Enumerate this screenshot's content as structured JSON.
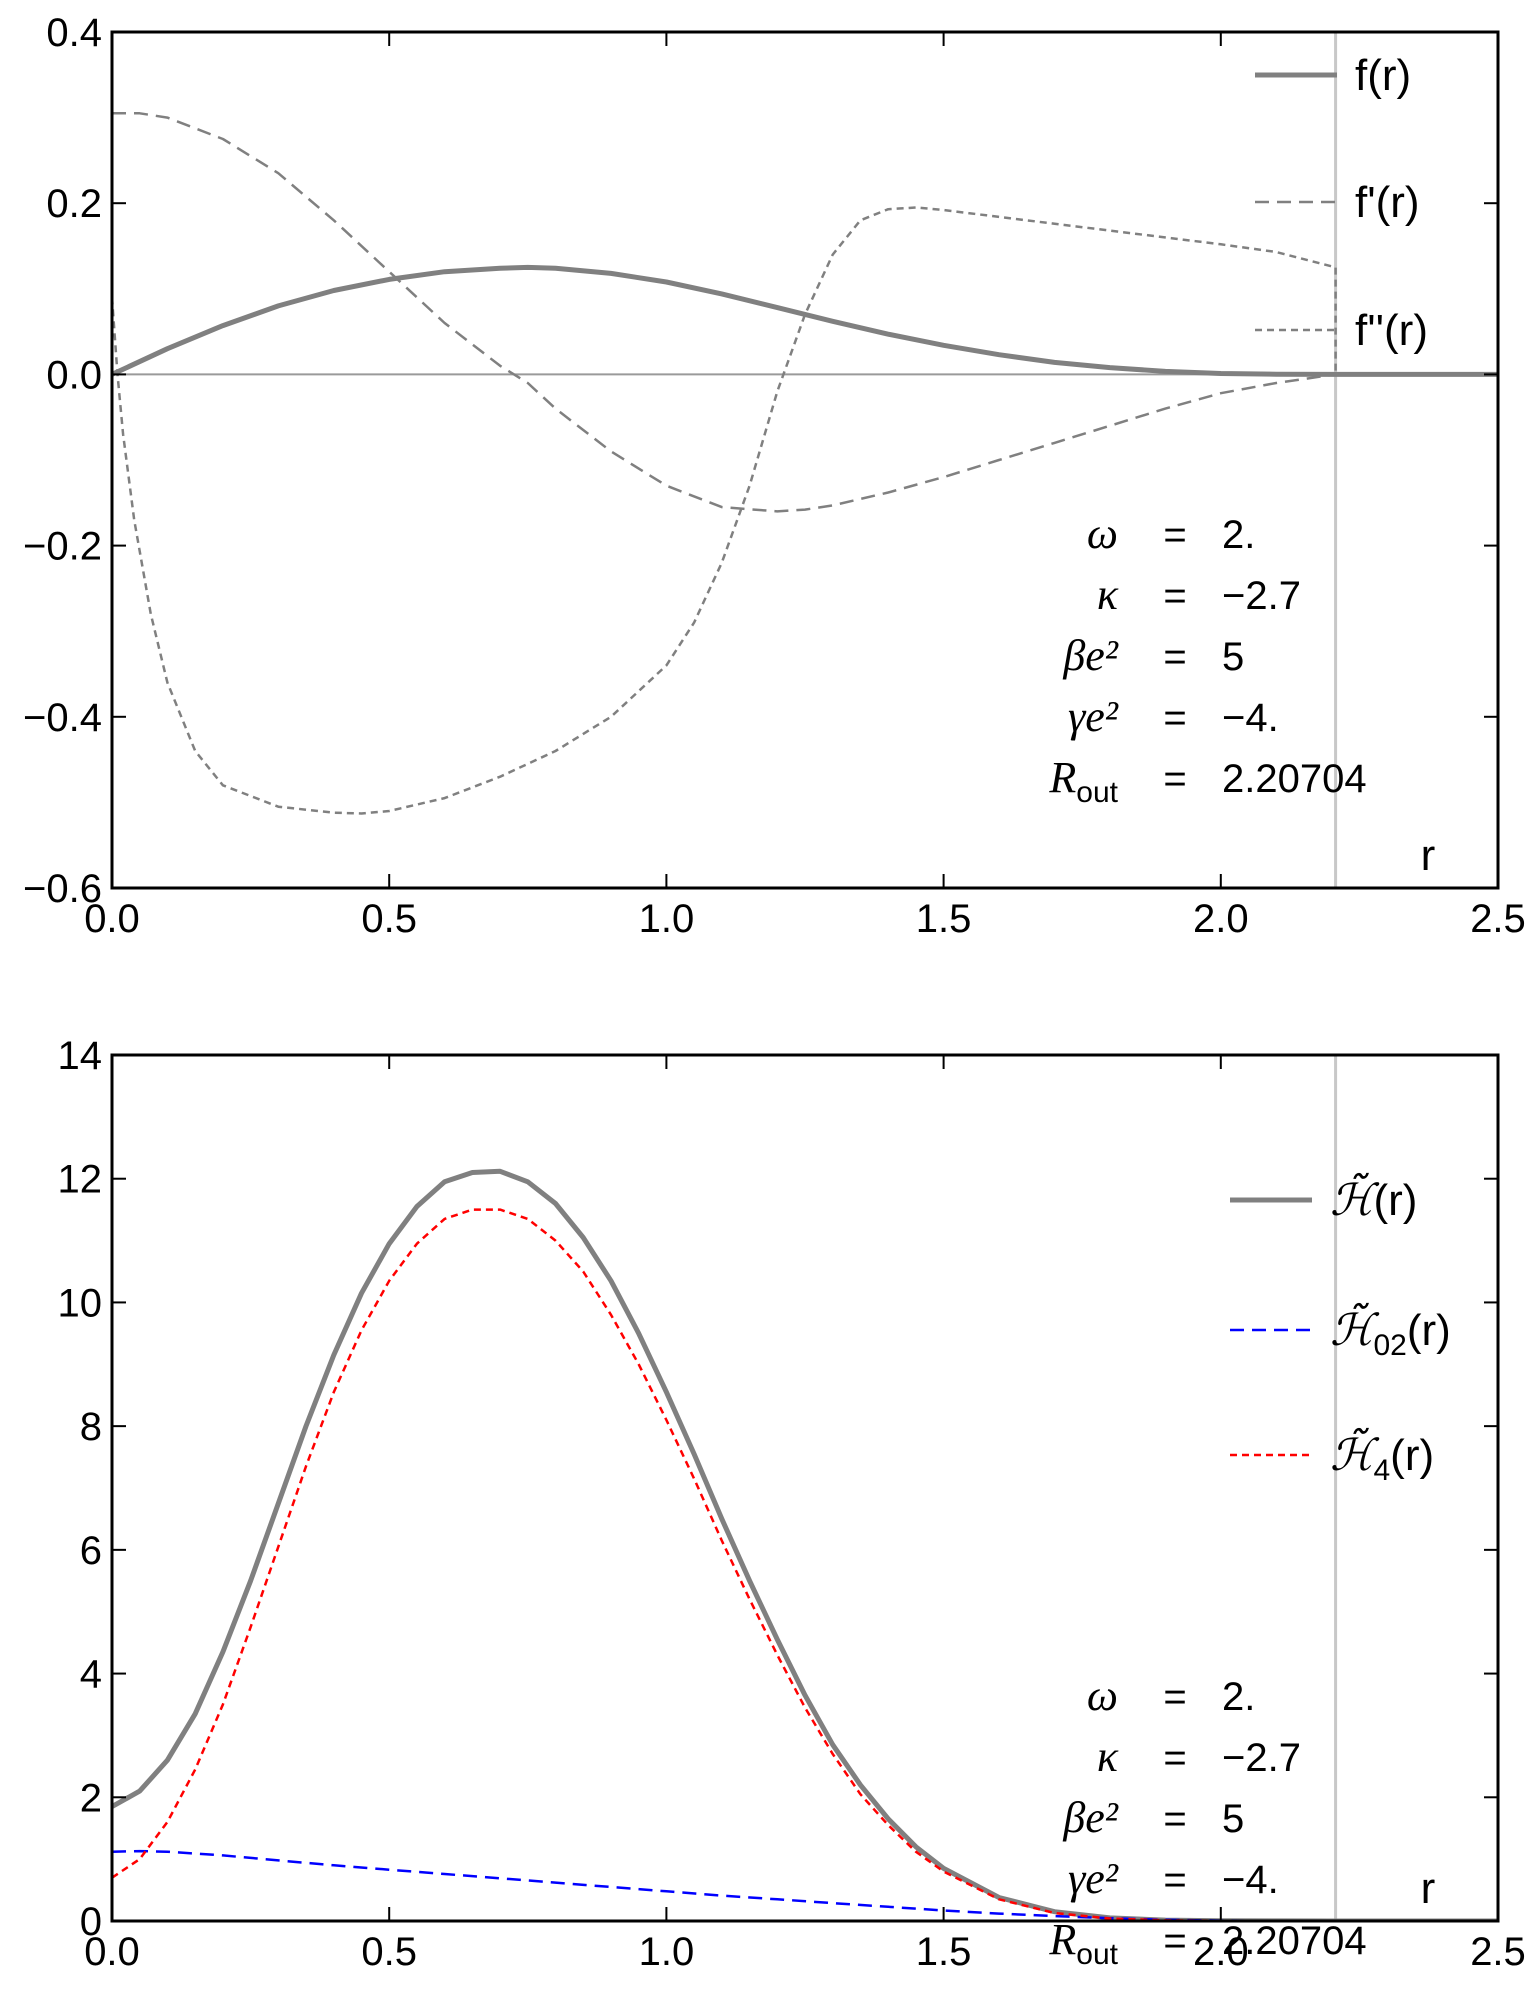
{
  "chart_data": [
    {
      "type": "line",
      "xlabel": "r",
      "xlim": [
        0,
        2.5
      ],
      "ylim": [
        -0.6,
        0.4
      ],
      "x_ticks": [
        "0.0",
        "0.5",
        "1.0",
        "1.5",
        "2.0",
        "2.5"
      ],
      "y_ticks": [
        "−0.6",
        "−0.4",
        "−0.2",
        "0.0",
        "0.2",
        "0.4"
      ],
      "vertical_line_x": 2.20704,
      "legend": [
        {
          "label": "f(r)",
          "color": "#808080",
          "style": "solid"
        },
        {
          "label": "f'(r)",
          "color": "#808080",
          "style": "dashed"
        },
        {
          "label": "f''(r)",
          "color": "#808080",
          "style": "dotted"
        }
      ],
      "series": [
        {
          "name": "f(r)",
          "color": "#808080",
          "style": "solid",
          "x": [
            0,
            0.1,
            0.2,
            0.3,
            0.4,
            0.5,
            0.6,
            0.7,
            0.75,
            0.8,
            0.9,
            1.0,
            1.1,
            1.2,
            1.3,
            1.4,
            1.5,
            1.6,
            1.7,
            1.8,
            1.9,
            2.0,
            2.1,
            2.20704,
            2.3,
            2.5
          ],
          "y": [
            0,
            0.03,
            0.057,
            0.08,
            0.098,
            0.111,
            0.12,
            0.124,
            0.125,
            0.124,
            0.118,
            0.108,
            0.094,
            0.078,
            0.062,
            0.047,
            0.034,
            0.023,
            0.014,
            0.008,
            0.0035,
            0.001,
            0.0002,
            0,
            0,
            0
          ]
        },
        {
          "name": "f'(r)",
          "color": "#808080",
          "style": "dashed",
          "x": [
            0,
            0.05,
            0.1,
            0.2,
            0.3,
            0.4,
            0.5,
            0.6,
            0.7,
            0.75,
            0.8,
            0.9,
            1.0,
            1.1,
            1.2,
            1.25,
            1.3,
            1.4,
            1.5,
            1.6,
            1.7,
            1.8,
            1.9,
            2.0,
            2.1,
            2.20704
          ],
          "y": [
            0.305,
            0.305,
            0.3,
            0.275,
            0.235,
            0.18,
            0.12,
            0.06,
            0.01,
            -0.01,
            -0.04,
            -0.09,
            -0.13,
            -0.155,
            -0.16,
            -0.158,
            -0.153,
            -0.138,
            -0.12,
            -0.1,
            -0.08,
            -0.06,
            -0.04,
            -0.022,
            -0.01,
            0
          ]
        },
        {
          "name": "f''(r)",
          "color": "#808080",
          "style": "dotted",
          "x": [
            0,
            0.01,
            0.02,
            0.04,
            0.07,
            0.1,
            0.15,
            0.2,
            0.3,
            0.4,
            0.45,
            0.5,
            0.6,
            0.7,
            0.8,
            0.9,
            1.0,
            1.05,
            1.1,
            1.15,
            1.2,
            1.25,
            1.3,
            1.35,
            1.4,
            1.45,
            1.5,
            1.6,
            1.8,
            2.0,
            2.1,
            2.20704,
            2.20705
          ],
          "y": [
            0.09,
            0.0,
            -0.07,
            -0.17,
            -0.28,
            -0.36,
            -0.44,
            -0.48,
            -0.505,
            -0.512,
            -0.513,
            -0.51,
            -0.495,
            -0.47,
            -0.44,
            -0.4,
            -0.34,
            -0.29,
            -0.22,
            -0.13,
            -0.02,
            0.07,
            0.14,
            0.18,
            0.193,
            0.195,
            0.192,
            0.184,
            0.168,
            0.152,
            0.143,
            0.125,
            0
          ]
        }
      ],
      "annotation": {
        "rows": [
          {
            "symbol": "ω",
            "eq": "=",
            "value": "2."
          },
          {
            "symbol": "κ",
            "eq": "=",
            "value": "−2.7"
          },
          {
            "symbol": "βe²",
            "eq": "=",
            "value": "5"
          },
          {
            "symbol": "γe²",
            "eq": "=",
            "value": "−4."
          },
          {
            "symbol": "R",
            "sub": "out",
            "eq": "=",
            "value": "2.20704"
          }
        ]
      }
    },
    {
      "type": "line",
      "xlabel": "r",
      "xlim": [
        0,
        2.5
      ],
      "ylim": [
        0,
        14
      ],
      "x_ticks": [
        "0.0",
        "0.5",
        "1.0",
        "1.5",
        "2.0",
        "2.5"
      ],
      "y_ticks": [
        "0",
        "2",
        "4",
        "6",
        "8",
        "10",
        "12",
        "14"
      ],
      "vertical_line_x": 2.20704,
      "legend": [
        {
          "label": "H̃(r)",
          "base": "ℋ",
          "sub": "",
          "tail": "(r)",
          "color": "#808080",
          "style": "solid"
        },
        {
          "label": "H̃₀₂(r)",
          "base": "ℋ",
          "sub": "02",
          "tail": "(r)",
          "color": "#0000ff",
          "style": "dashed"
        },
        {
          "label": "H̃₄(r)",
          "base": "ℋ",
          "sub": "4",
          "tail": "(r)",
          "color": "#ff0000",
          "style": "dotted"
        }
      ],
      "series": [
        {
          "name": "H(r)",
          "color": "#808080",
          "style": "solid",
          "x": [
            0,
            0.05,
            0.1,
            0.15,
            0.2,
            0.25,
            0.3,
            0.35,
            0.4,
            0.45,
            0.5,
            0.55,
            0.6,
            0.65,
            0.7,
            0.75,
            0.8,
            0.85,
            0.9,
            0.95,
            1.0,
            1.05,
            1.1,
            1.15,
            1.2,
            1.25,
            1.3,
            1.35,
            1.4,
            1.45,
            1.5,
            1.6,
            1.7,
            1.8,
            1.9,
            2.0,
            2.1,
            2.2,
            2.3,
            2.5
          ],
          "y": [
            1.85,
            2.1,
            2.6,
            3.35,
            4.35,
            5.5,
            6.75,
            8.0,
            9.15,
            10.15,
            10.95,
            11.55,
            11.95,
            12.1,
            12.12,
            11.95,
            11.6,
            11.05,
            10.35,
            9.5,
            8.55,
            7.55,
            6.5,
            5.5,
            4.55,
            3.65,
            2.85,
            2.2,
            1.65,
            1.2,
            0.85,
            0.38,
            0.15,
            0.05,
            0.015,
            0.004,
            0.001,
            0,
            0,
            0
          ]
        },
        {
          "name": "H02(r)",
          "color": "#0000ff",
          "style": "dashed",
          "x": [
            0,
            0.05,
            0.1,
            0.2,
            0.3,
            0.4,
            0.5,
            0.6,
            0.7,
            0.8,
            0.9,
            1.0,
            1.1,
            1.2,
            1.3,
            1.4,
            1.5,
            1.6,
            1.7,
            1.8,
            1.9,
            2.0,
            2.1,
            2.2
          ],
          "y": [
            1.12,
            1.13,
            1.12,
            1.06,
            0.98,
            0.9,
            0.83,
            0.76,
            0.69,
            0.62,
            0.55,
            0.48,
            0.41,
            0.35,
            0.29,
            0.23,
            0.17,
            0.12,
            0.08,
            0.045,
            0.02,
            0.007,
            0.002,
            0
          ]
        },
        {
          "name": "H4(r)",
          "color": "#ff0000",
          "style": "dotted",
          "x": [
            0,
            0.05,
            0.1,
            0.15,
            0.2,
            0.25,
            0.3,
            0.35,
            0.4,
            0.45,
            0.5,
            0.55,
            0.6,
            0.65,
            0.7,
            0.75,
            0.8,
            0.85,
            0.9,
            0.95,
            1.0,
            1.05,
            1.1,
            1.15,
            1.2,
            1.25,
            1.3,
            1.35,
            1.4,
            1.45,
            1.5,
            1.6,
            1.7,
            1.8,
            1.9,
            2.0,
            2.1,
            2.2
          ],
          "y": [
            0.7,
            1.0,
            1.6,
            2.45,
            3.5,
            4.75,
            6.05,
            7.35,
            8.55,
            9.55,
            10.35,
            10.95,
            11.35,
            11.5,
            11.5,
            11.35,
            11.0,
            10.5,
            9.8,
            9.0,
            8.1,
            7.15,
            6.15,
            5.2,
            4.3,
            3.45,
            2.7,
            2.05,
            1.55,
            1.12,
            0.8,
            0.35,
            0.13,
            0.04,
            0.012,
            0.003,
            0.001,
            0
          ]
        }
      ],
      "annotation": {
        "rows": [
          {
            "symbol": "ω",
            "eq": "=",
            "value": "2."
          },
          {
            "symbol": "κ",
            "eq": "=",
            "value": "−2.7"
          },
          {
            "symbol": "βe²",
            "eq": "=",
            "value": "5"
          },
          {
            "symbol": "γe²",
            "eq": "=",
            "value": "−4."
          },
          {
            "symbol": "R",
            "sub": "out",
            "eq": "=",
            "value": "2.20704"
          }
        ]
      }
    }
  ]
}
